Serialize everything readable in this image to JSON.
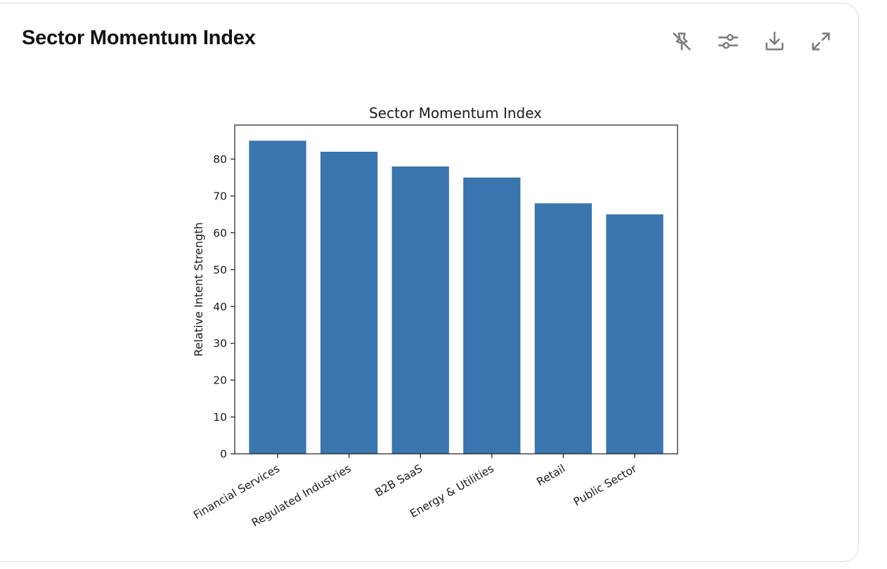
{
  "panel": {
    "title": "Sector Momentum Index"
  },
  "toolbar": {
    "tools": [
      {
        "name": "pin-off-icon"
      },
      {
        "name": "sliders-icon"
      },
      {
        "name": "download-icon"
      },
      {
        "name": "expand-icon"
      }
    ]
  },
  "colors": {
    "bar": "#3a75ae"
  },
  "chart_data": {
    "type": "bar",
    "title": "Sector Momentum Index",
    "xlabel": "",
    "ylabel": "Relative Intent Strength",
    "categories": [
      "Financial Services",
      "Regulated Industries",
      "B2B SaaS",
      "Energy & Utilities",
      "Retail",
      "Public Sector"
    ],
    "values": [
      85,
      82,
      78,
      75,
      68,
      65
    ],
    "ylim": [
      0,
      89.25
    ],
    "yticks": [
      0,
      10,
      20,
      30,
      40,
      50,
      60,
      70,
      80
    ],
    "grid": false,
    "legend": "none"
  }
}
